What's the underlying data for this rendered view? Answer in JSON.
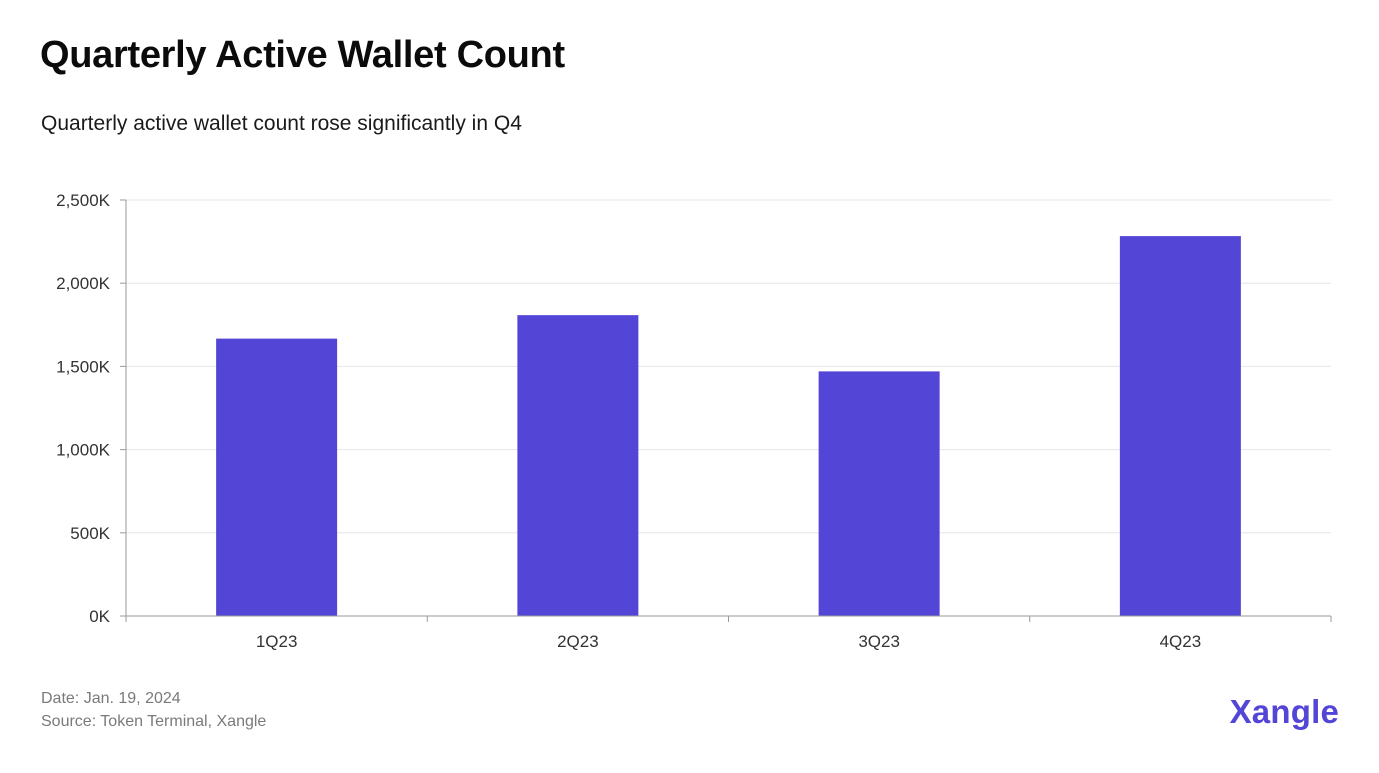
{
  "title": "Quarterly Active Wallet Count",
  "subtitle": "Quarterly active wallet count rose significantly in Q4",
  "footer": {
    "date": "Date: Jan. 19, 2024",
    "source": "Source: Token Terminal, Xangle"
  },
  "logo": "Xangle",
  "colors": {
    "bar": "#5346d6",
    "grid": "#e6e6e6",
    "axis": "#9a9a9a"
  },
  "chart_data": {
    "type": "bar",
    "title": "Quarterly Active Wallet Count",
    "xlabel": "",
    "ylabel": "",
    "categories": [
      "1Q23",
      "2Q23",
      "3Q23",
      "4Q23"
    ],
    "values": [
      1667,
      1808,
      1470,
      2283
    ],
    "unit": "K",
    "ylim": [
      0,
      2500
    ],
    "yticks": [
      0,
      500,
      1000,
      1500,
      2000,
      2500
    ],
    "ytick_labels": [
      "0K",
      "500K",
      "1,000K",
      "1,500K",
      "2,000K",
      "2,500K"
    ],
    "grid": true,
    "legend": "none"
  }
}
